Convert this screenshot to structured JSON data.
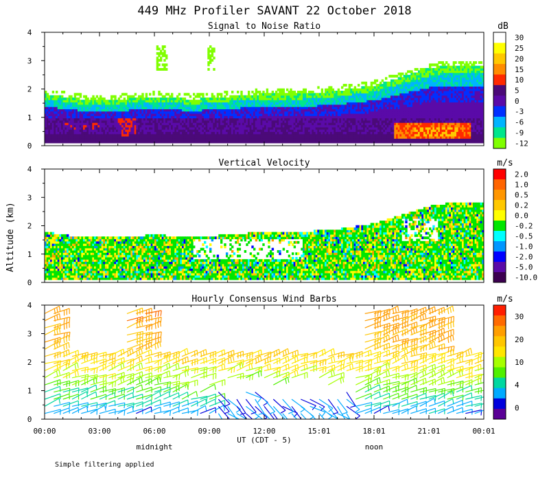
{
  "figure": {
    "title": "449 MHz Profiler SAVANT 22 October 2018",
    "y_axis_label": "Altitude (km)",
    "x_axis_label": "UT  (CDT - 5)",
    "midnight_label": "midnight",
    "noon_label": "noon",
    "footnote": "Simple filtering applied",
    "x_ticks": [
      "00:00",
      "03:00",
      "06:00",
      "09:00",
      "12:00",
      "15:01",
      "18:01",
      "21:01",
      "00:01"
    ],
    "y_ticks": [
      "0",
      "1",
      "2",
      "3",
      "4"
    ]
  },
  "chart_data": [
    {
      "type": "heatmap",
      "title": "Signal to Noise Ratio",
      "xlabel": "UT  (CDT - 5)",
      "ylabel": "Altitude (km)",
      "x_range_hours": [
        0,
        24
      ],
      "ylim": [
        0,
        4
      ],
      "colorbar": {
        "unit": "dB",
        "labels": [
          "30",
          "25",
          "20",
          "15",
          "10",
          "5",
          "0",
          "-3",
          "-6",
          "-9",
          "-12"
        ],
        "colors": [
          "#ffffff",
          "#ffff00",
          "#ffc800",
          "#ff8c00",
          "#ff2a00",
          "#4b0a78",
          "#5a0aa8",
          "#0030ff",
          "#00b4ff",
          "#00e68c",
          "#80ff00"
        ]
      },
      "boundary_layer_top_km": [
        [
          0,
          1.8
        ],
        [
          2,
          1.6
        ],
        [
          4,
          1.6
        ],
        [
          6,
          1.7
        ],
        [
          8,
          1.6
        ],
        [
          10,
          1.7
        ],
        [
          12,
          1.8
        ],
        [
          14,
          1.8
        ],
        [
          16,
          1.9
        ],
        [
          18,
          2.1
        ],
        [
          19,
          2.3
        ],
        [
          20,
          2.5
        ],
        [
          21,
          2.7
        ],
        [
          22,
          2.8
        ],
        [
          23.5,
          2.8
        ]
      ]
    },
    {
      "type": "heatmap",
      "title": "Vertical Velocity",
      "xlabel": "UT  (CDT - 5)",
      "ylabel": "Altitude (km)",
      "x_range_hours": [
        0,
        24
      ],
      "ylim": [
        0,
        4
      ],
      "colorbar": {
        "unit": "m/s",
        "labels": [
          "2.0",
          "1.0",
          "0.5",
          "0.2",
          "0.0",
          "-0.2",
          "-0.5",
          "-1.0",
          "-2.0",
          "-5.0",
          "-10.0"
        ],
        "colors": [
          "#ff0000",
          "#ff6400",
          "#ff9600",
          "#ffc800",
          "#ffff00",
          "#00e600",
          "#00ffff",
          "#0096ff",
          "#0000ff",
          "#5a0aa8",
          "#3c0050"
        ]
      }
    },
    {
      "type": "scatter",
      "title": "Hourly Consensus Wind Barbs",
      "xlabel": "UT  (CDT - 5)",
      "ylabel": "Altitude (km)",
      "x_range_hours": [
        0,
        24
      ],
      "ylim": [
        0,
        4
      ],
      "colorbar": {
        "unit": "m/s",
        "labels": [
          "30",
          "20",
          "10",
          "4",
          "0"
        ],
        "colors": [
          "#ff1e00",
          "#ff6a00",
          "#ff9e00",
          "#ffc600",
          "#ffe600",
          "#a6ff00",
          "#50f000",
          "#00d7a0",
          "#00aaff",
          "#0000dc",
          "#5a0096"
        ]
      },
      "wind_speed_profile_mps": [
        [
          0.2,
          6
        ],
        [
          0.6,
          9
        ],
        [
          1.0,
          12
        ],
        [
          1.4,
          15
        ],
        [
          1.8,
          18
        ],
        [
          2.6,
          22
        ],
        [
          3.4,
          24
        ]
      ]
    }
  ]
}
